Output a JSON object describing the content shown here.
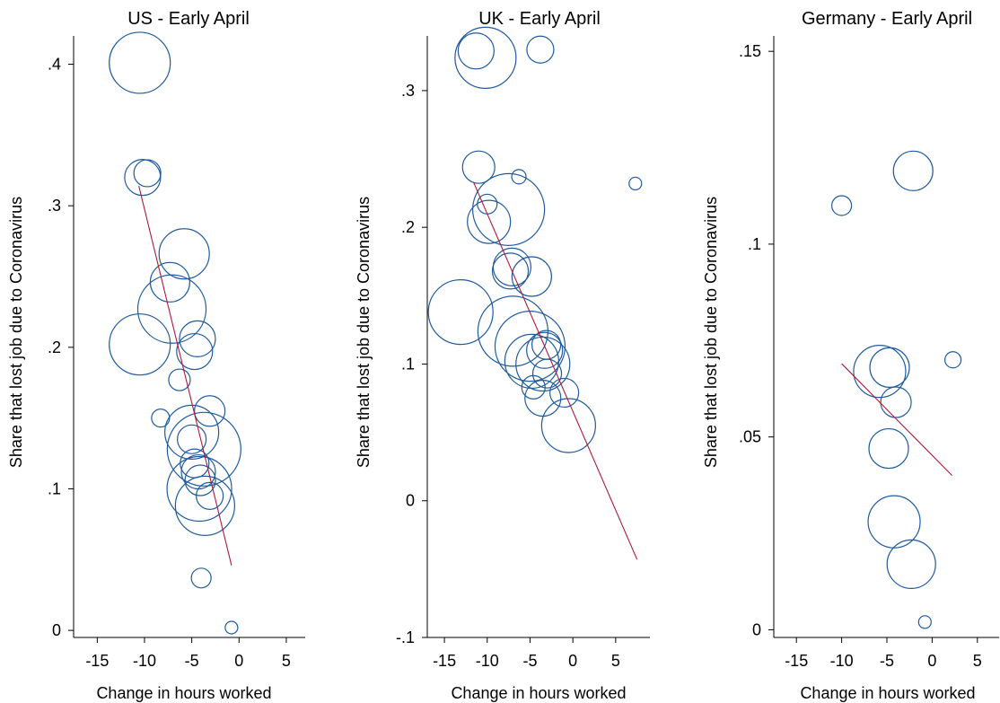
{
  "colors": {
    "bubble": "#1f5b9e",
    "fit_line": "#b0183c"
  },
  "chart_data": [
    {
      "type": "scatter",
      "title": "US - Early April",
      "xlabel": "Change in hours worked",
      "ylabel": "Share that lost job due to Coronavirus",
      "xlim": [
        -17.5,
        7
      ],
      "ylim": [
        -0.005,
        0.42
      ],
      "xticks": [
        -15,
        -10,
        -5,
        0,
        5
      ],
      "xtick_labels": [
        "-15",
        "-10",
        "-5",
        "0",
        "5"
      ],
      "yticks": [
        0,
        0.1,
        0.2,
        0.3,
        0.4
      ],
      "ytick_labels": [
        "0",
        ".1",
        ".2",
        ".3",
        ".4"
      ],
      "points": [
        {
          "x": -10.5,
          "y": 0.401,
          "weight": 34
        },
        {
          "x": -10.2,
          "y": 0.32,
          "weight": 20
        },
        {
          "x": -9.7,
          "y": 0.323,
          "weight": 15
        },
        {
          "x": -5.8,
          "y": 0.266,
          "weight": 28
        },
        {
          "x": -7.3,
          "y": 0.246,
          "weight": 22
        },
        {
          "x": -7.1,
          "y": 0.227,
          "weight": 38
        },
        {
          "x": -10.5,
          "y": 0.202,
          "weight": 34
        },
        {
          "x": -4.4,
          "y": 0.206,
          "weight": 20
        },
        {
          "x": -4.7,
          "y": 0.197,
          "weight": 20
        },
        {
          "x": -6.3,
          "y": 0.177,
          "weight": 12
        },
        {
          "x": -8.3,
          "y": 0.15,
          "weight": 10
        },
        {
          "x": -3.1,
          "y": 0.155,
          "weight": 17
        },
        {
          "x": -5.0,
          "y": 0.14,
          "weight": 30
        },
        {
          "x": -5.0,
          "y": 0.135,
          "weight": 16
        },
        {
          "x": -3.7,
          "y": 0.128,
          "weight": 41
        },
        {
          "x": -4.7,
          "y": 0.118,
          "weight": 16
        },
        {
          "x": -4.3,
          "y": 0.112,
          "weight": 19
        },
        {
          "x": -4.1,
          "y": 0.106,
          "weight": 17
        },
        {
          "x": -4.2,
          "y": 0.1,
          "weight": 36
        },
        {
          "x": -3.1,
          "y": 0.095,
          "weight": 15
        },
        {
          "x": -3.6,
          "y": 0.088,
          "weight": 33
        },
        {
          "x": -4.0,
          "y": 0.037,
          "weight": 11
        },
        {
          "x": -0.8,
          "y": 0.002,
          "weight": 7
        }
      ],
      "fit_line": {
        "x": [
          -10.6,
          -0.8
        ],
        "y": [
          0.314,
          0.046
        ]
      }
    },
    {
      "type": "scatter",
      "title": "UK - Early April",
      "xlabel": "Change in hours worked",
      "ylabel": "Share that lost job due to Coronavirus",
      "xlim": [
        -17,
        9
      ],
      "ylim": [
        -0.1,
        0.34
      ],
      "xticks": [
        -15,
        -10,
        -5,
        0,
        5
      ],
      "xtick_labels": [
        "-15",
        "-10",
        "-5",
        "0",
        "5"
      ],
      "yticks": [
        -0.1,
        0,
        0.1,
        0.2,
        0.3
      ],
      "ytick_labels": [
        "-.1",
        "0",
        ".1",
        ".2",
        ".3"
      ],
      "points": [
        {
          "x": -11.3,
          "y": 0.329,
          "weight": 20
        },
        {
          "x": -10.2,
          "y": 0.324,
          "weight": 34
        },
        {
          "x": -3.8,
          "y": 0.33,
          "weight": 15
        },
        {
          "x": -11.0,
          "y": 0.244,
          "weight": 18
        },
        {
          "x": -6.3,
          "y": 0.237,
          "weight": 8
        },
        {
          "x": -10.0,
          "y": 0.217,
          "weight": 11
        },
        {
          "x": -7.5,
          "y": 0.213,
          "weight": 40
        },
        {
          "x": -9.8,
          "y": 0.204,
          "weight": 24
        },
        {
          "x": -7.1,
          "y": 0.171,
          "weight": 21
        },
        {
          "x": -7.3,
          "y": 0.168,
          "weight": 20
        },
        {
          "x": -4.8,
          "y": 0.164,
          "weight": 22
        },
        {
          "x": -13.1,
          "y": 0.138,
          "weight": 36
        },
        {
          "x": -7.0,
          "y": 0.124,
          "weight": 39
        },
        {
          "x": -5.0,
          "y": 0.113,
          "weight": 39
        },
        {
          "x": -3.1,
          "y": 0.114,
          "weight": 16
        },
        {
          "x": -3.3,
          "y": 0.11,
          "weight": 20
        },
        {
          "x": -4.8,
          "y": 0.102,
          "weight": 30
        },
        {
          "x": -3.5,
          "y": 0.1,
          "weight": 30
        },
        {
          "x": -3.0,
          "y": 0.093,
          "weight": 16
        },
        {
          "x": -4.6,
          "y": 0.083,
          "weight": 13
        },
        {
          "x": -1.0,
          "y": 0.079,
          "weight": 16
        },
        {
          "x": -3.5,
          "y": 0.075,
          "weight": 20
        },
        {
          "x": -0.5,
          "y": 0.055,
          "weight": 30
        },
        {
          "x": 7.3,
          "y": 0.232,
          "weight": 7
        }
      ],
      "fit_line": {
        "x": [
          -11.6,
          7.5
        ],
        "y": [
          0.233,
          -0.043
        ]
      }
    },
    {
      "type": "scatter",
      "title": "Germany - Early April",
      "xlabel": "Change in hours worked",
      "ylabel": "Share that lost job due to Coronavirus",
      "xlim": [
        -17.5,
        7.5
      ],
      "ylim": [
        -0.002,
        0.154
      ],
      "xticks": [
        -15,
        -10,
        -5,
        0,
        5
      ],
      "xtick_labels": [
        "-15",
        "-10",
        "-5",
        "0",
        "5"
      ],
      "yticks": [
        0,
        0.05,
        0.1,
        0.15
      ],
      "ytick_labels": [
        "0",
        ".05",
        ".1",
        ".15"
      ],
      "points": [
        {
          "x": -10.0,
          "y": 0.11,
          "weight": 11
        },
        {
          "x": -2.1,
          "y": 0.119,
          "weight": 22
        },
        {
          "x": -5.8,
          "y": 0.067,
          "weight": 29
        },
        {
          "x": -4.7,
          "y": 0.068,
          "weight": 22
        },
        {
          "x": -4.0,
          "y": 0.059,
          "weight": 17
        },
        {
          "x": 2.3,
          "y": 0.07,
          "weight": 9
        },
        {
          "x": -4.8,
          "y": 0.047,
          "weight": 22
        },
        {
          "x": -4.2,
          "y": 0.028,
          "weight": 29
        },
        {
          "x": -2.3,
          "y": 0.017,
          "weight": 27
        },
        {
          "x": -0.8,
          "y": 0.002,
          "weight": 7
        }
      ],
      "fit_line": {
        "x": [
          -10.0,
          2.2
        ],
        "y": [
          0.069,
          0.04
        ]
      }
    }
  ]
}
